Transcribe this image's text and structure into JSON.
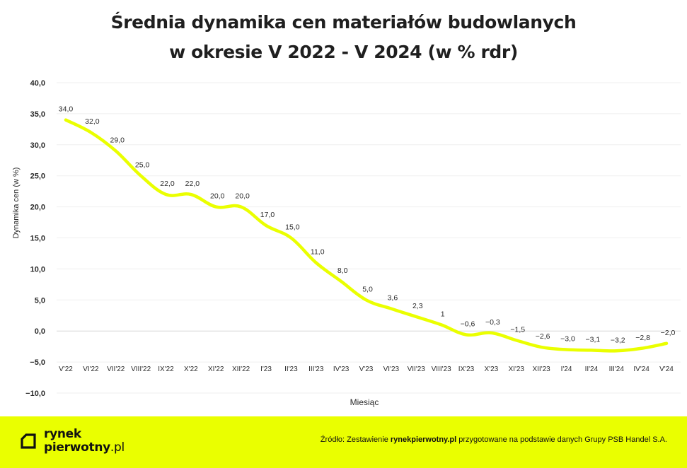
{
  "title": {
    "line1": "Średnia dynamika cen materiałów budowlanych",
    "line2": "w okresie V 2022 - V 2024 (w % rdr)"
  },
  "chart_data": {
    "type": "line",
    "title": "Średnia dynamika cen materiałów budowlanych w okresie V 2022 - V 2024 (w % rdr)",
    "xlabel": "Miesiąc",
    "ylabel": "Dynamika cen (w %)",
    "ylim": [
      -10,
      40
    ],
    "yticks": [
      40,
      35,
      30,
      25,
      20,
      15,
      10,
      5,
      0,
      -5,
      -10
    ],
    "ytick_labels": [
      "40,0",
      "35,0",
      "30,0",
      "25,0",
      "20,0",
      "15,0",
      "10,0",
      "5,0",
      "0,0",
      "−5,0",
      "−10,0"
    ],
    "grid": true,
    "line_color": "#eaff00",
    "categories": [
      "V'22",
      "VI'22",
      "VII'22",
      "VIII'22",
      "IX'22",
      "X'22",
      "XI'22",
      "XII'22",
      "I'23",
      "II'23",
      "III'23",
      "IV'23",
      "V'23",
      "VI'23",
      "VII'23",
      "VIII'23",
      "IX'23",
      "X'23",
      "XI'23",
      "XII'23",
      "I'24",
      "II'24",
      "III'24",
      "IV'24",
      "V'24"
    ],
    "values": [
      34.0,
      32.0,
      29.0,
      25.0,
      22.0,
      22.0,
      20.0,
      20.0,
      17.0,
      15.0,
      11.0,
      8.0,
      5.0,
      3.6,
      2.3,
      1.0,
      -0.6,
      -0.3,
      -1.5,
      -2.6,
      -3.0,
      -3.1,
      -3.2,
      -2.8,
      -2.0
    ],
    "data_labels": [
      "34,0",
      "32,0",
      "29,0",
      "25,0",
      "22,0",
      "22,0",
      "20,0",
      "20,0",
      "17,0",
      "15,0",
      "11,0",
      "8,0",
      "5,0",
      "3,6",
      "2,3",
      "1",
      "−0,6",
      "−0,3",
      "−1,5",
      "−2,6",
      "−3,0",
      "−3,1",
      "−3,2",
      "−2,8",
      "−2,0"
    ]
  },
  "footer": {
    "logo_line1": "rynek",
    "logo_line2_bold": "pierwotny",
    "logo_line2_light": ".pl",
    "source_prefix": "Źródło: Zestawienie ",
    "source_bold": "rynekpierwotny.pl",
    "source_suffix": " przygotowane na podstawie danych Grupy PSB Handel S.A.",
    "background_color": "#eaff00"
  }
}
